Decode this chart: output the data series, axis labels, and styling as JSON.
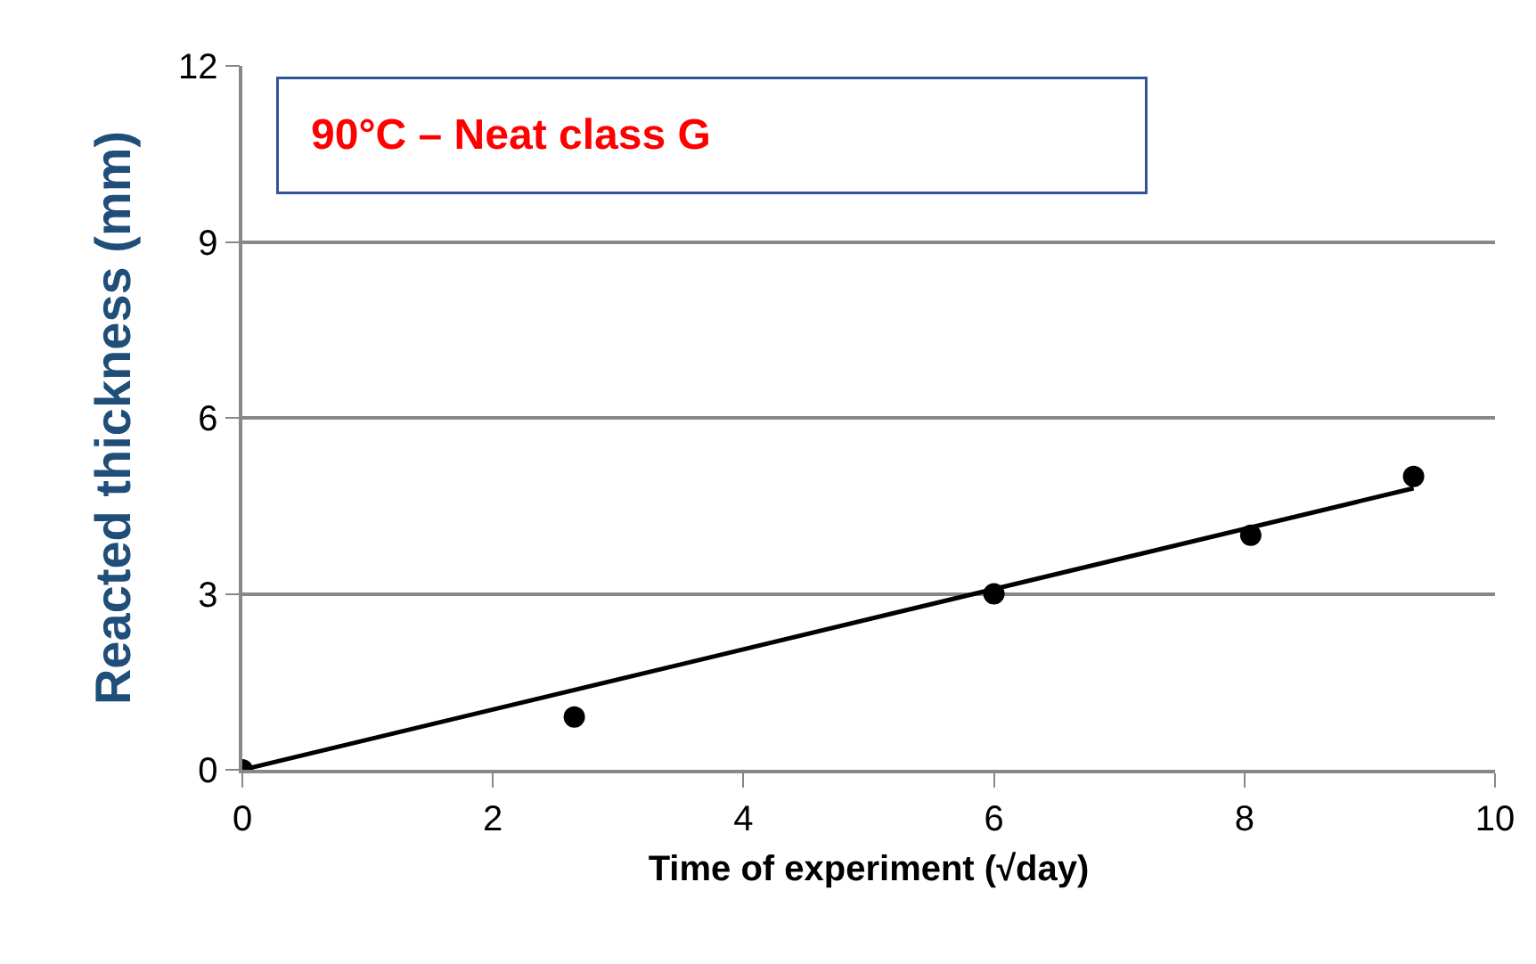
{
  "chart_data": {
    "type": "scatter",
    "xlabel": "Time of experiment (√day)",
    "ylabel": "Reacted thickness (mm)",
    "annotations": [
      "90°C – Neat class G"
    ],
    "series": [
      {
        "color": "#000000",
        "x": [
          0,
          2.65,
          6,
          8.05,
          9.35
        ],
        "values": [
          0,
          0.9,
          3,
          4,
          5
        ],
        "marker": "circle"
      },
      {
        "type": "line",
        "color": "#000000",
        "x": [
          0,
          9.35
        ],
        "values": [
          0,
          4.8
        ],
        "marker": "none",
        "line_style": "solid"
      }
    ],
    "xlim": [
      0,
      10
    ],
    "xticks": [
      0,
      2,
      4,
      6,
      8,
      10
    ],
    "ylim": [
      0,
      12
    ],
    "yticks": [
      0,
      3,
      6,
      9,
      12
    ],
    "grid": "y"
  }
}
